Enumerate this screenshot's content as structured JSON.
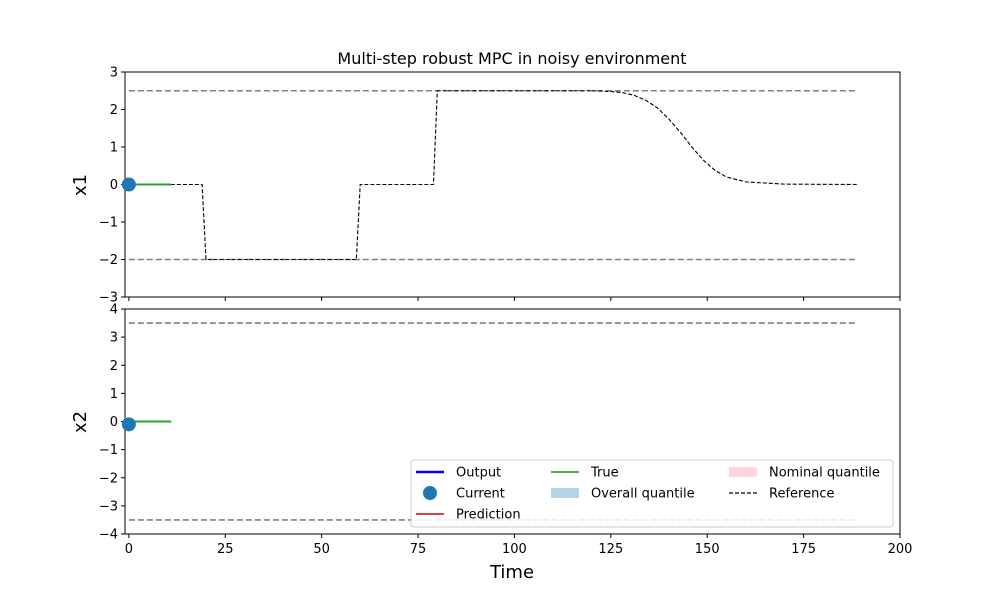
{
  "chart_data": {
    "type": "line",
    "title": "Multi-step robust MPC in noisy environment",
    "xlabel": "Time",
    "xlim": [
      -1,
      200
    ],
    "xticks": [
      0,
      25,
      50,
      75,
      100,
      125,
      150,
      175,
      200
    ],
    "tick_labels": {
      "x": [
        "0",
        "25",
        "50",
        "75",
        "100",
        "125",
        "150",
        "175",
        "200"
      ],
      "y1": [
        "−3",
        "−2",
        "−1",
        "0",
        "1",
        "2",
        "3"
      ],
      "y2": [
        "−4",
        "−3",
        "−2",
        "−1",
        "0",
        "1",
        "2",
        "3",
        "4"
      ]
    },
    "subplots": [
      {
        "ylabel": "x1",
        "ylim": [
          -3,
          3
        ],
        "yticks": [
          -3,
          -2,
          -1,
          0,
          1,
          2,
          3
        ],
        "bounds": [
          2.5,
          -2.0
        ],
        "reference": {
          "x": [
            0,
            19,
            20,
            59,
            60,
            79,
            80,
            100,
            120,
            125,
            128,
            131,
            134,
            137,
            140,
            143,
            146,
            149,
            152,
            155,
            160,
            170,
            189
          ],
          "y": [
            0,
            0,
            -2,
            -2,
            0,
            0,
            2.5,
            2.5,
            2.5,
            2.48,
            2.45,
            2.38,
            2.25,
            2.05,
            1.75,
            1.4,
            1.0,
            0.65,
            0.38,
            0.2,
            0.07,
            0.01,
            0
          ]
        },
        "true": {
          "x": [
            0,
            11
          ],
          "y": [
            0,
            0
          ]
        },
        "current": {
          "x": 0,
          "y": 0
        }
      },
      {
        "ylabel": "x2",
        "ylim": [
          -4,
          4
        ],
        "yticks": [
          -4,
          -3,
          -2,
          -1,
          0,
          1,
          2,
          3,
          4
        ],
        "bounds": [
          3.5,
          -3.5
        ],
        "true": {
          "x": [
            0,
            11
          ],
          "y": [
            0,
            0
          ]
        },
        "current": {
          "x": 0,
          "y": -0.1
        }
      }
    ],
    "bounds_x": [
      0,
      189
    ],
    "legend": {
      "placement": "lower-right",
      "entries": [
        {
          "label": "Output",
          "kind": "line",
          "color": "#0000ff"
        },
        {
          "label": "Current",
          "kind": "marker",
          "color": "#1f77b4"
        },
        {
          "label": "Prediction",
          "kind": "line",
          "color": "#d62728"
        },
        {
          "label": "True",
          "kind": "line",
          "color": "#2ca02c"
        },
        {
          "label": "Overall quantile",
          "kind": "patch",
          "color": "#b3d3e8"
        },
        {
          "label": "Nominal quantile",
          "kind": "patch",
          "color": "#fcd5de"
        },
        {
          "label": "Reference",
          "kind": "dashed",
          "color": "#000000"
        }
      ]
    },
    "colors": {
      "bounds": "#808080",
      "reference": "#000000",
      "true": "#2ca02c",
      "current": "#1f77b4"
    }
  }
}
